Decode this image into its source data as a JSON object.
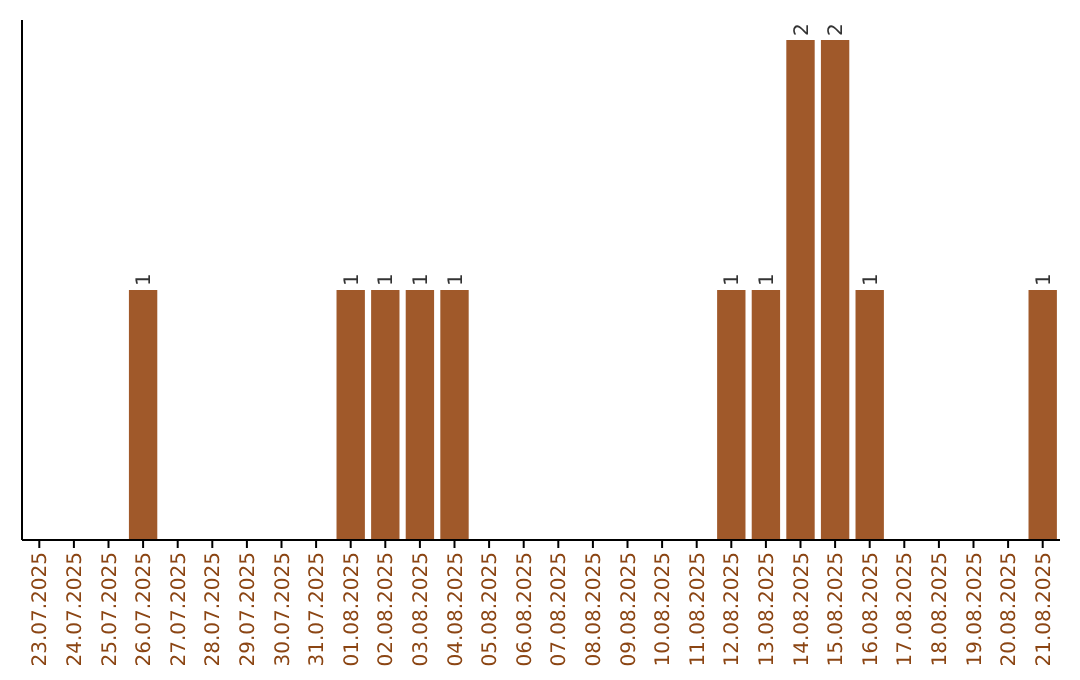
{
  "chart_data": {
    "type": "bar",
    "categories": [
      "23.07.2025",
      "24.07.2025",
      "25.07.2025",
      "26.07.2025",
      "27.07.2025",
      "28.07.2025",
      "29.07.2025",
      "30.07.2025",
      "31.07.2025",
      "01.08.2025",
      "02.08.2025",
      "03.08.2025",
      "04.08.2025",
      "05.08.2025",
      "06.08.2025",
      "07.08.2025",
      "08.08.2025",
      "09.08.2025",
      "10.08.2025",
      "11.08.2025",
      "12.08.2025",
      "13.08.2025",
      "14.08.2025",
      "15.08.2025",
      "16.08.2025",
      "17.08.2025",
      "18.08.2025",
      "19.08.2025",
      "20.08.2025",
      "21.08.2025"
    ],
    "values": [
      0,
      0,
      0,
      1,
      0,
      0,
      0,
      0,
      0,
      1,
      1,
      1,
      1,
      0,
      0,
      0,
      0,
      0,
      0,
      0,
      1,
      1,
      2,
      2,
      1,
      0,
      0,
      0,
      0,
      1
    ],
    "value_labels": [
      null,
      null,
      null,
      "1",
      null,
      null,
      null,
      null,
      null,
      "1",
      "1",
      "1",
      "1",
      null,
      null,
      null,
      null,
      null,
      null,
      null,
      "1",
      "1",
      "2",
      "2",
      "1",
      null,
      null,
      null,
      null,
      "1"
    ],
    "color": "#a0592a",
    "ylim": [
      0,
      2
    ],
    "tick_labels": "x"
  }
}
